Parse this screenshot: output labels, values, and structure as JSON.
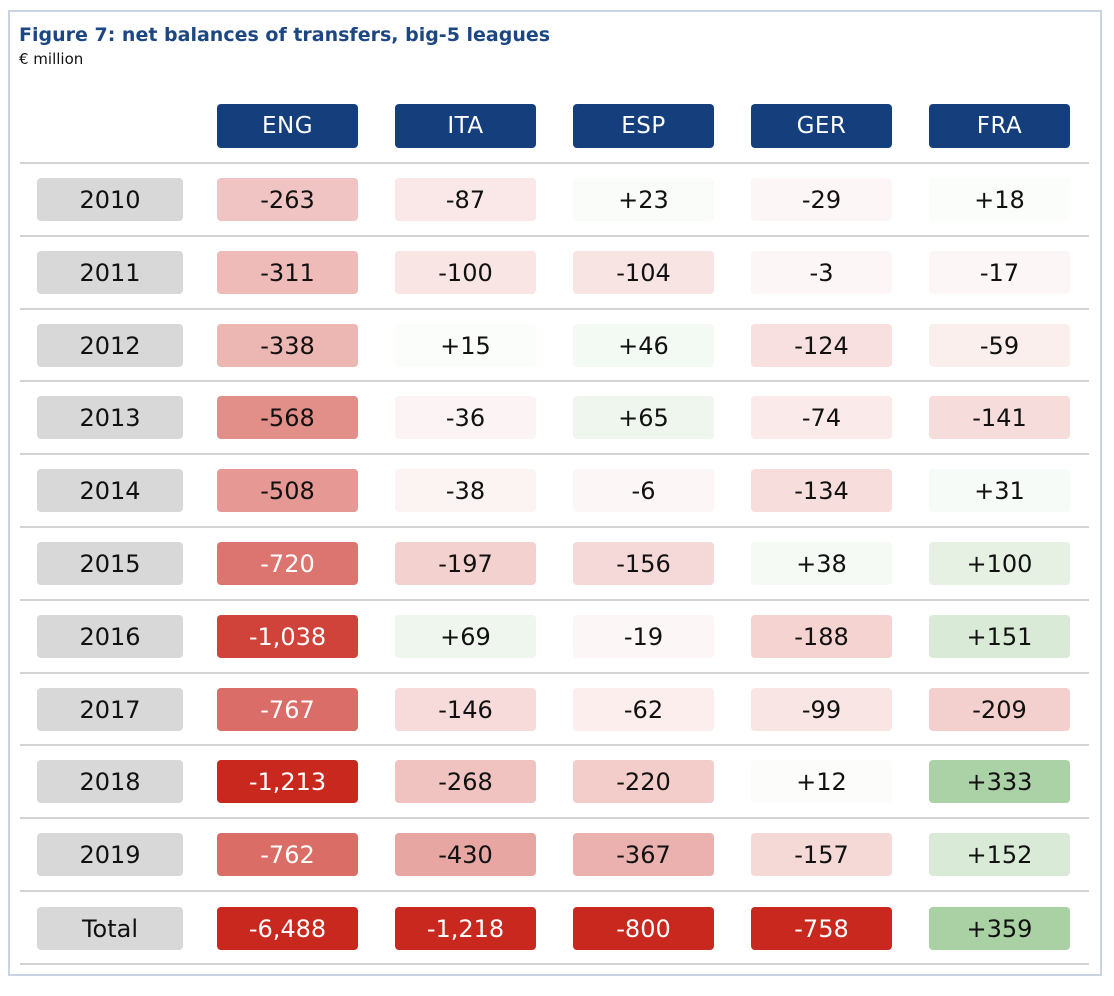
{
  "title": "Figure 7: net balances of transfers, big-5 leagues",
  "subtitle": "€ million",
  "chart_data": {
    "type": "table",
    "title": "Figure 7: net balances of transfers, big-5 leagues",
    "subtitle": "€ million",
    "columns": [
      "ENG",
      "ITA",
      "ESP",
      "GER",
      "FRA"
    ],
    "rows": [
      {
        "label": "2010",
        "values": [
          -263,
          -87,
          23,
          -29,
          18
        ],
        "display": [
          "-263",
          "-87",
          "+23",
          "-29",
          "+18"
        ]
      },
      {
        "label": "2011",
        "values": [
          -311,
          -100,
          -104,
          -3,
          -17
        ],
        "display": [
          "-311",
          "-100",
          "-104",
          "-3",
          "-17"
        ]
      },
      {
        "label": "2012",
        "values": [
          -338,
          15,
          46,
          -124,
          -59
        ],
        "display": [
          "-338",
          "+15",
          "+46",
          "-124",
          "-59"
        ]
      },
      {
        "label": "2013",
        "values": [
          -568,
          -36,
          65,
          -74,
          -141
        ],
        "display": [
          "-568",
          "-36",
          "+65",
          "-74",
          "-141"
        ]
      },
      {
        "label": "2014",
        "values": [
          -508,
          -38,
          -6,
          -134,
          31
        ],
        "display": [
          "-508",
          "-38",
          "-6",
          "-134",
          "+31"
        ]
      },
      {
        "label": "2015",
        "values": [
          -720,
          -197,
          -156,
          38,
          100
        ],
        "display": [
          "-720",
          "-197",
          "-156",
          "+38",
          "+100"
        ]
      },
      {
        "label": "2016",
        "values": [
          -1038,
          69,
          -19,
          -188,
          151
        ],
        "display": [
          "-1,038",
          "+69",
          "-19",
          "-188",
          "+151"
        ]
      },
      {
        "label": "2017",
        "values": [
          -767,
          -146,
          -62,
          -99,
          -209
        ],
        "display": [
          "-767",
          "-146",
          "-62",
          "-99",
          "-209"
        ]
      },
      {
        "label": "2018",
        "values": [
          -1213,
          -268,
          -220,
          12,
          333
        ],
        "display": [
          "-1,213",
          "-268",
          "-220",
          "+12",
          "+333"
        ]
      },
      {
        "label": "2019",
        "values": [
          -762,
          -430,
          -367,
          -157,
          152
        ],
        "display": [
          "-762",
          "-430",
          "-367",
          "-157",
          "+152"
        ]
      }
    ],
    "total": {
      "label": "Total",
      "values": [
        -6488,
        -1218,
        -800,
        -758,
        359
      ],
      "display": [
        "-6,488",
        "-1,218",
        "-800",
        "-758",
        "+359"
      ]
    }
  },
  "colors": {
    "header_bg": "#143f7c",
    "title_text": "#1d4783",
    "year_bg": "#d8d8d8",
    "negative_strong": "#c8281e",
    "positive_strong": "#a9d1a4",
    "neutral": "#ffffff"
  }
}
